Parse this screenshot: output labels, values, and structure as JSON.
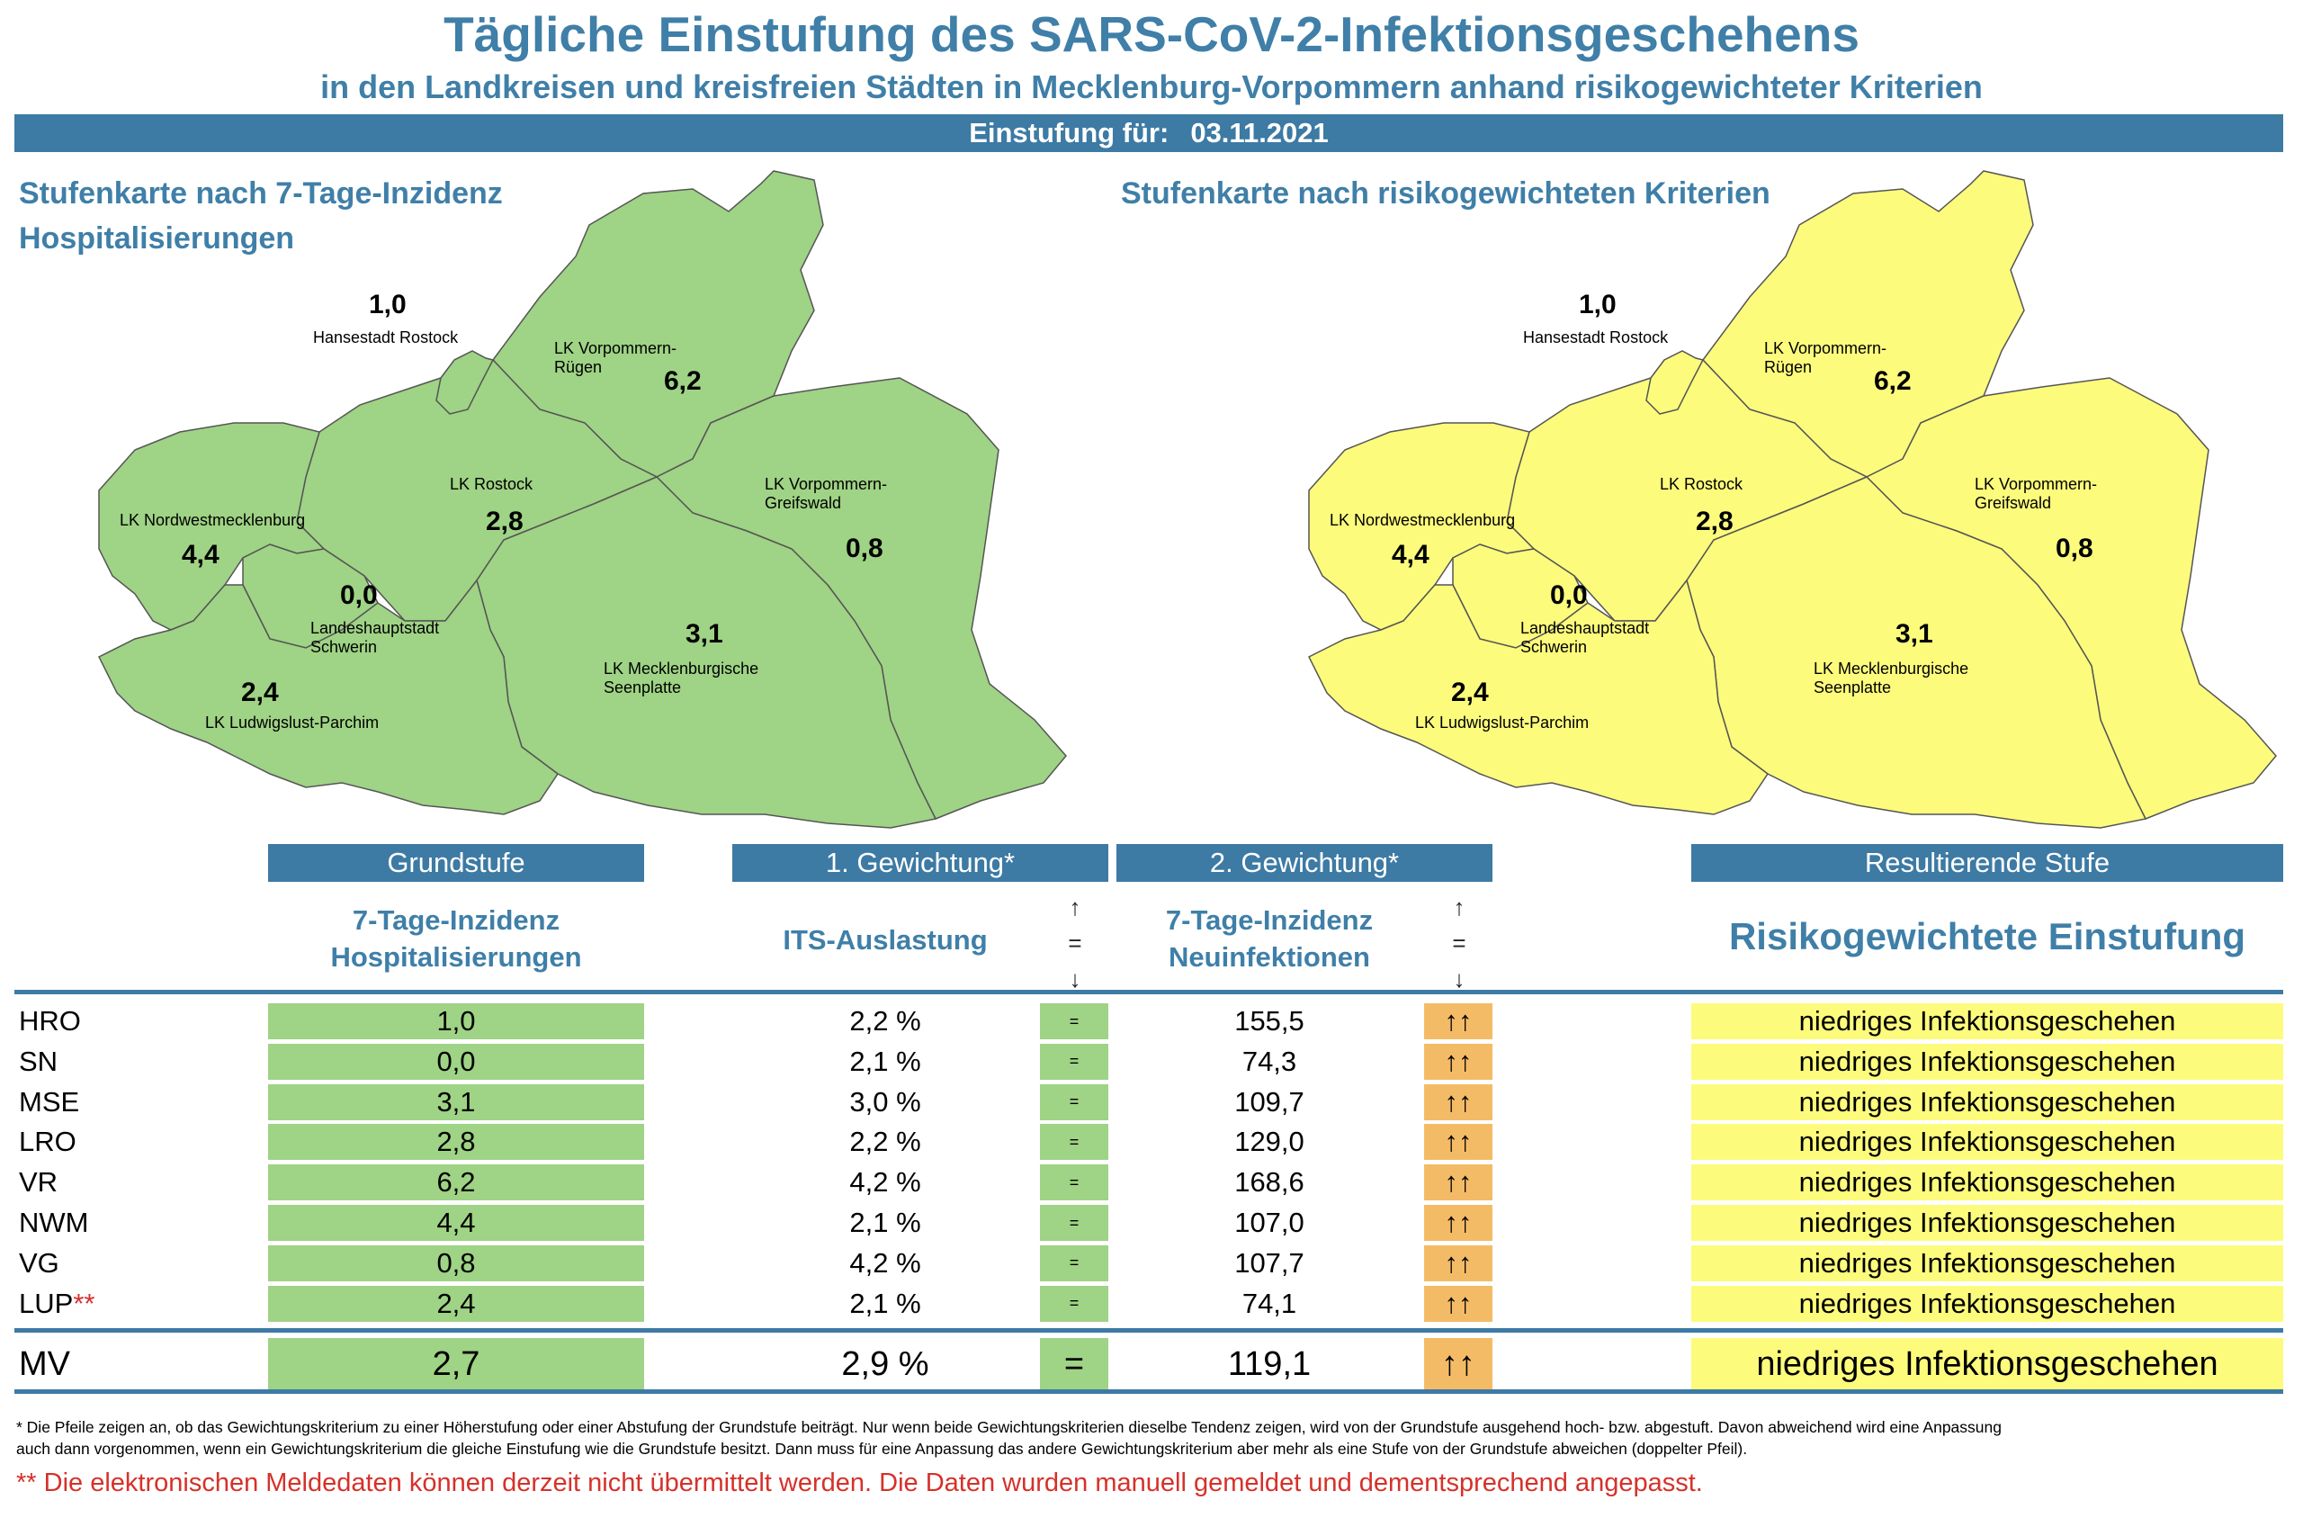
{
  "header": {
    "title": "Tägliche Einstufung des SARS-CoV-2-Infektionsgeschehens",
    "subtitle": "in den Landkreisen und kreisfreien Städten in Mecklenburg-Vorpommern anhand risikogewichteter Kriterien",
    "date_label": "Einstufung für:",
    "date_value": "03.11.2021"
  },
  "maps": {
    "left_title_line1": "Stufenkarte nach 7-Tage-Inzidenz",
    "left_title_line2": "Hospitalisierungen",
    "right_title": "Stufenkarte nach risikogewichteten Kriterien",
    "left_color": "#9fd385",
    "right_color": "#fdfb7c",
    "regions": [
      {
        "key": "hro",
        "label_line1": "Hansestadt Rostock",
        "label_line2": "",
        "value": "1,0"
      },
      {
        "key": "vr",
        "label_line1": "LK Vorpommern-",
        "label_line2": "Rügen",
        "value": "6,2"
      },
      {
        "key": "lro",
        "label_line1": "LK Rostock",
        "label_line2": "",
        "value": "2,8"
      },
      {
        "key": "vg",
        "label_line1": "LK Vorpommern-",
        "label_line2": "Greifswald",
        "value": "0,8"
      },
      {
        "key": "nwm",
        "label_line1": "LK Nordwestmecklenburg",
        "label_line2": "",
        "value": "4,4"
      },
      {
        "key": "sn",
        "label_line1": "Landeshauptstadt",
        "label_line2": "Schwerin",
        "value": "0,0"
      },
      {
        "key": "mse",
        "label_line1": "LK Mecklenburgische",
        "label_line2": "Seenplatte",
        "value": "3,1"
      },
      {
        "key": "lup",
        "label_line1": "LK Ludwigslust-Parchim",
        "label_line2": "",
        "value": "2,4"
      }
    ]
  },
  "table": {
    "headers": {
      "grundstufe": "Grundstufe",
      "gew1": "1. Gewichtung*",
      "gew2": "2. Gewichtung*",
      "result": "Resultierende Stufe"
    },
    "subheaders": {
      "grund_line1": "7-Tage-Inzidenz",
      "grund_line2": "Hospitalisierungen",
      "its": "ITS-Auslastung",
      "neu_line1": "7-Tage-Inzidenz",
      "neu_line2": "Neuinfektionen",
      "result": "Risikogewichtete Einstufung"
    },
    "arrow_legend": {
      "up": "↑",
      "eq": "=",
      "down": "↓"
    },
    "rows": [
      {
        "name": "HRO",
        "grund": "1,0",
        "its": "2,2 %",
        "its_trend": "=",
        "neu": "155,5",
        "neu_trend": "↑↑",
        "result": "niedriges Infektionsgeschehen"
      },
      {
        "name": "SN",
        "grund": "0,0",
        "its": "2,1 %",
        "its_trend": "=",
        "neu": "74,3",
        "neu_trend": "↑↑",
        "result": "niedriges Infektionsgeschehen"
      },
      {
        "name": "MSE",
        "grund": "3,1",
        "its": "3,0 %",
        "its_trend": "=",
        "neu": "109,7",
        "neu_trend": "↑↑",
        "result": "niedriges Infektionsgeschehen"
      },
      {
        "name": "LRO",
        "grund": "2,8",
        "its": "2,2 %",
        "its_trend": "=",
        "neu": "129,0",
        "neu_trend": "↑↑",
        "result": "niedriges Infektionsgeschehen"
      },
      {
        "name": "VR",
        "grund": "6,2",
        "its": "4,2 %",
        "its_trend": "=",
        "neu": "168,6",
        "neu_trend": "↑↑",
        "result": "niedriges Infektionsgeschehen"
      },
      {
        "name": "NWM",
        "grund": "4,4",
        "its": "2,1 %",
        "its_trend": "=",
        "neu": "107,0",
        "neu_trend": "↑↑",
        "result": "niedriges Infektionsgeschehen"
      },
      {
        "name": "VG",
        "grund": "0,8",
        "its": "4,2 %",
        "its_trend": "=",
        "neu": "107,7",
        "neu_trend": "↑↑",
        "result": "niedriges Infektionsgeschehen"
      },
      {
        "name": "LUP",
        "name_mark": "**",
        "grund": "2,4",
        "its": "2,1 %",
        "its_trend": "=",
        "neu": "74,1",
        "neu_trend": "↑↑",
        "result": "niedriges Infektionsgeschehen"
      }
    ],
    "total": {
      "name": "MV",
      "grund": "2,7",
      "its": "2,9 %",
      "its_trend": "=",
      "neu": "119,1",
      "neu_trend": "↑↑",
      "result": "niedriges Infektionsgeschehen"
    }
  },
  "footnotes": {
    "arrows_line1": "* Die Pfeile zeigen an, ob das Gewichtungskriterium zu einer Höherstufung oder einer Abstufung der Grundstufe beiträgt. Nur wenn beide Gewichtungskriterien dieselbe Tendenz zeigen, wird von der Grundstufe ausgehend hoch- bzw. abgestuft.  Davon abweichend wird eine Anpassung",
    "arrows_line2": "auch dann vorgenommen, wenn ein Gewichtungskriterium die gleiche Einstufung wie die Grundstufe besitzt. Dann muss für eine Anpassung das andere Gewichtungskriterium aber mehr als eine Stufe von der Grundstufe abweichen (doppelter Pfeil).",
    "data_note": "** Die elektronischen Meldedaten können derzeit nicht übermittelt werden. Die Daten wurden manuell gemeldet und dementsprechend angepasst."
  }
}
